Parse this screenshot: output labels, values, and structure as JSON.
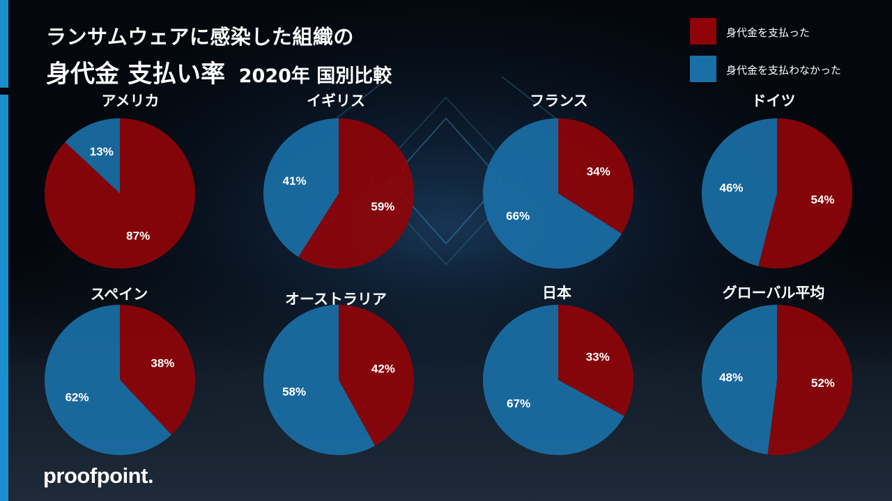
{
  "title": {
    "line1": "ランサムウェアに感染した組織の",
    "line2_main": "身代金 支払い率",
    "line2_sub": "2020年 国別比較"
  },
  "legend": [
    {
      "label": "身代金を支払った",
      "color": "#8e0409"
    },
    {
      "label": "身代金を支払わなかった",
      "color": "#1a6fa6"
    }
  ],
  "logo": "proofpoint.",
  "colors": {
    "paid": "#8e0409",
    "not_paid": "#1a6fa6",
    "accent": "#1a8fd0"
  },
  "chart_data": [
    {
      "type": "pie",
      "title": "アメリカ",
      "slices": [
        {
          "label": "身代金を支払った",
          "value": 87,
          "text": "87%"
        },
        {
          "label": "身代金を支払わなかった",
          "value": 13,
          "text": "13%"
        }
      ]
    },
    {
      "type": "pie",
      "title": "イギリス",
      "slices": [
        {
          "label": "身代金を支払った",
          "value": 59,
          "text": "59%"
        },
        {
          "label": "身代金を支払わなかった",
          "value": 41,
          "text": "41%"
        }
      ]
    },
    {
      "type": "pie",
      "title": "フランス",
      "slices": [
        {
          "label": "身代金を支払った",
          "value": 34,
          "text": "34%"
        },
        {
          "label": "身代金を支払わなかった",
          "value": 66,
          "text": "66%"
        }
      ]
    },
    {
      "type": "pie",
      "title": "ドイツ",
      "slices": [
        {
          "label": "身代金を支払った",
          "value": 54,
          "text": "54%"
        },
        {
          "label": "身代金を支払わなかった",
          "value": 46,
          "text": "46%"
        }
      ]
    },
    {
      "type": "pie",
      "title": "スペイン",
      "slices": [
        {
          "label": "身代金を支払った",
          "value": 38,
          "text": "38%"
        },
        {
          "label": "身代金を支払わなかった",
          "value": 62,
          "text": "62%"
        }
      ]
    },
    {
      "type": "pie",
      "title": "オーストラリア",
      "slices": [
        {
          "label": "身代金を支払った",
          "value": 42,
          "text": "42%"
        },
        {
          "label": "身代金を支払わなかった",
          "value": 58,
          "text": "58%"
        }
      ]
    },
    {
      "type": "pie",
      "title": "日本",
      "slices": [
        {
          "label": "身代金を支払った",
          "value": 33,
          "text": "33%"
        },
        {
          "label": "身代金を支払わなかった",
          "value": 67,
          "text": "67%"
        }
      ]
    },
    {
      "type": "pie",
      "title": "グローバル平均",
      "slices": [
        {
          "label": "身代金を支払った",
          "value": 52,
          "text": "52%"
        },
        {
          "label": "身代金を支払わなかった",
          "value": 48,
          "text": "48%"
        }
      ]
    }
  ]
}
